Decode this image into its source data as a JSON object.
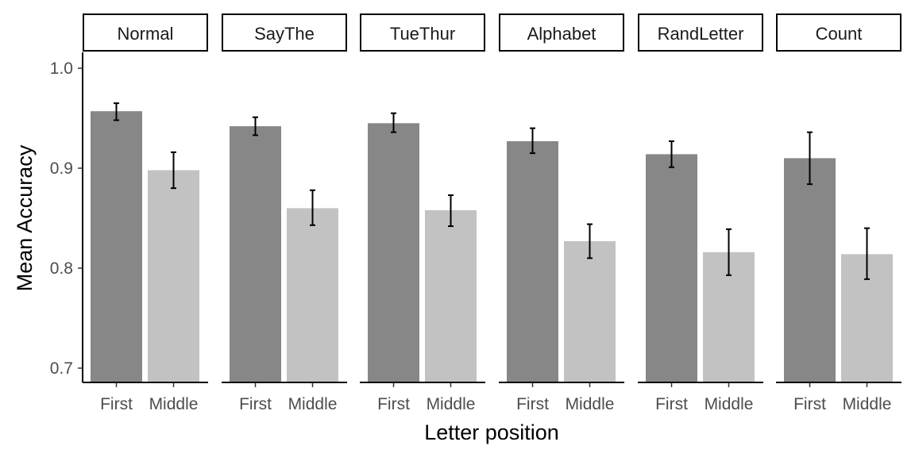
{
  "chart_data": {
    "type": "bar",
    "xlabel": "Letter position",
    "ylabel": "Mean Accuracy",
    "ylim": [
      0.68,
      1.015
    ],
    "yticks": [
      0.7,
      0.8,
      0.9,
      1.0
    ],
    "ytick_labels": [
      "0.7",
      "0.8",
      "0.9",
      "1.0"
    ],
    "categories": [
      "First",
      "Middle"
    ],
    "facets": [
      {
        "name": "Normal",
        "bars": [
          {
            "category": "First",
            "value": 0.957,
            "lower": 0.948,
            "upper": 0.965
          },
          {
            "category": "Middle",
            "value": 0.898,
            "lower": 0.88,
            "upper": 0.916
          }
        ]
      },
      {
        "name": "SayThe",
        "bars": [
          {
            "category": "First",
            "value": 0.942,
            "lower": 0.933,
            "upper": 0.951
          },
          {
            "category": "Middle",
            "value": 0.86,
            "lower": 0.843,
            "upper": 0.878
          }
        ]
      },
      {
        "name": "TueThur",
        "bars": [
          {
            "category": "First",
            "value": 0.945,
            "lower": 0.936,
            "upper": 0.955
          },
          {
            "category": "Middle",
            "value": 0.858,
            "lower": 0.842,
            "upper": 0.873
          }
        ]
      },
      {
        "name": "Alphabet",
        "bars": [
          {
            "category": "First",
            "value": 0.927,
            "lower": 0.915,
            "upper": 0.94
          },
          {
            "category": "Middle",
            "value": 0.827,
            "lower": 0.81,
            "upper": 0.844
          }
        ]
      },
      {
        "name": "RandLetter",
        "bars": [
          {
            "category": "First",
            "value": 0.914,
            "lower": 0.901,
            "upper": 0.927
          },
          {
            "category": "Middle",
            "value": 0.816,
            "lower": 0.793,
            "upper": 0.839
          }
        ]
      },
      {
        "name": "Count",
        "bars": [
          {
            "category": "First",
            "value": 0.91,
            "lower": 0.884,
            "upper": 0.936
          },
          {
            "category": "Middle",
            "value": 0.814,
            "lower": 0.789,
            "upper": 0.84
          }
        ]
      }
    ],
    "colors": {
      "First": "#878787",
      "Middle": "#c2c2c2",
      "error_bar": "#000000"
    },
    "grid": false,
    "legend": "none"
  }
}
